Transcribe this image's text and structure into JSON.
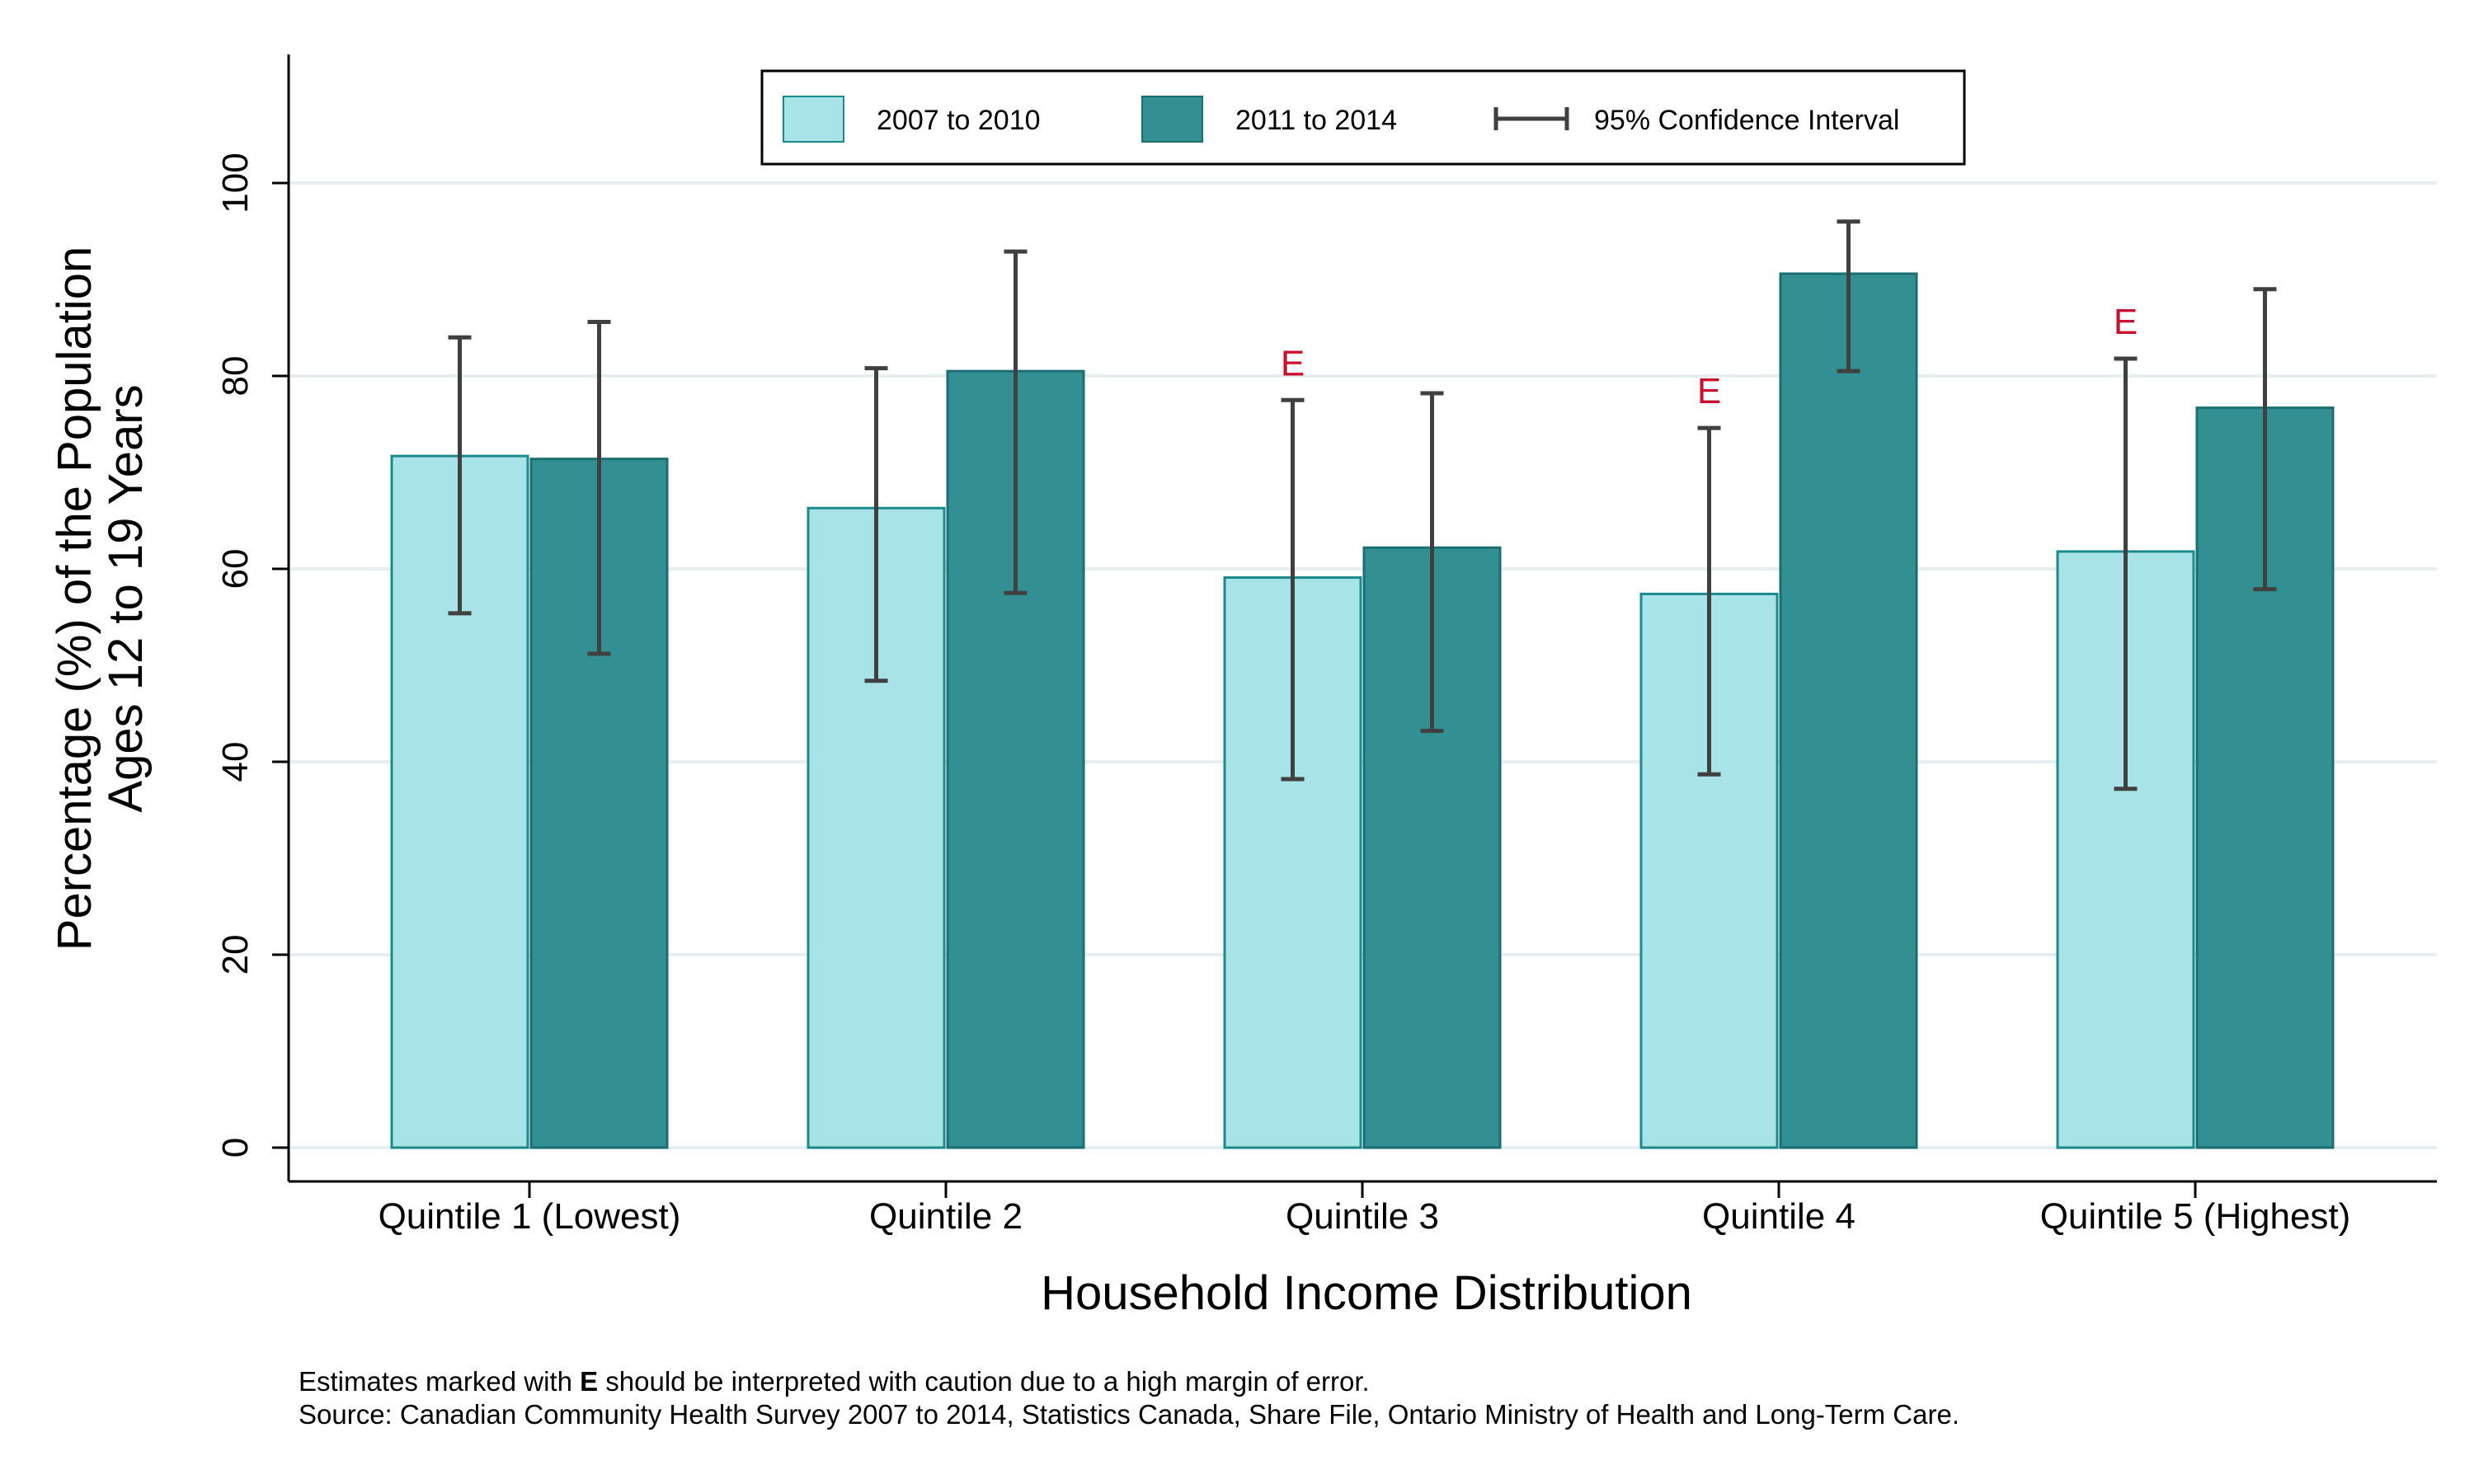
{
  "chart_data": {
    "type": "bar",
    "xlabel": "Household Income Distribution",
    "ylabel_lines": [
      "Percentage (%) of the Population",
      "Ages 12 to 19 Years"
    ],
    "ylim": [
      0,
      112
    ],
    "yticks": [
      0,
      20,
      40,
      60,
      80,
      100
    ],
    "grid": true,
    "legend_position": "top-center",
    "categories": [
      "Quintile 1 (Lowest)",
      "Quintile 2",
      "Quintile 3",
      "Quintile 4",
      "Quintile 5 (Highest)"
    ],
    "series": [
      {
        "name": "2007 to 2010",
        "color": "#a8e4e7",
        "stroke": "#1b8a8c",
        "values": [
          71.7,
          66.3,
          59.1,
          57.4,
          61.8
        ],
        "ci_low": [
          55.4,
          48.4,
          38.2,
          38.7,
          37.2
        ],
        "ci_high": [
          84.0,
          80.8,
          77.5,
          74.6,
          81.8
        ],
        "flags": [
          "",
          "",
          "E",
          "E",
          "E"
        ]
      },
      {
        "name": "2011 to 2014",
        "color": "#329093",
        "stroke": "#1b6f72",
        "values": [
          71.4,
          80.5,
          62.2,
          90.6,
          76.7
        ],
        "ci_low": [
          51.2,
          57.5,
          43.2,
          80.5,
          57.9
        ],
        "ci_high": [
          85.6,
          92.9,
          78.2,
          96.0,
          89.0
        ],
        "flags": [
          "",
          "",
          "",
          "",
          ""
        ]
      }
    ],
    "ci_legend_label": "95% Confidence Interval",
    "flag_color": "#c8102e"
  },
  "footnote": {
    "prefix": "Estimates marked with ",
    "bold": "E",
    "suffix": " should be interpreted with caution due to a high margin of error.",
    "source": "Source: Canadian Community Health Survey 2007 to 2014, Statistics Canada, Share File, Ontario Ministry of Health and Long-Term Care."
  }
}
